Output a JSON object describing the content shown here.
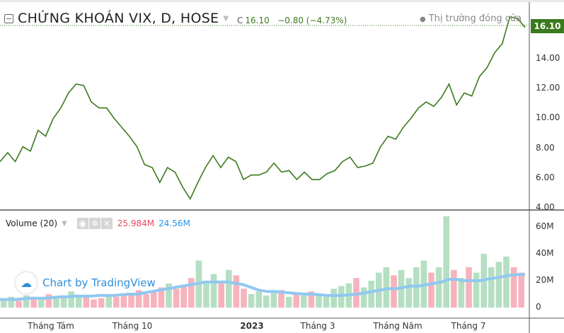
{
  "header": {
    "title": "CHỨNG KHOÁN VIX, D, HOSE",
    "close_label": "C",
    "close": "16.10",
    "change": "−0.80 (−4.73%)",
    "market_status": "Thị trường đóng cửa",
    "last_price": "16.10"
  },
  "volume": {
    "label": "Volume (20)",
    "icons": [
      "eye-icon",
      "gear-icon",
      "close-icon"
    ],
    "value": "25.984M",
    "ma_value": "24.56M"
  },
  "branding": "Chart by TradingView",
  "colors": {
    "price_line": "#3b7a1e",
    "volume_up": "#b5dfc2",
    "volume_down": "#f6b3bd",
    "volume_ma": "#90c8f0"
  },
  "chart_data": [
    {
      "type": "line",
      "name": "",
      "ylim": [
        4,
        17
      ],
      "yticks": [
        "16.10",
        "14.00",
        "12.00",
        "10.00",
        "8.00",
        "6.00",
        "4.00"
      ],
      "xticks": [
        "Tháng Tám",
        "Tháng 10",
        "2023",
        "Tháng 3",
        "Tháng Năm",
        "Tháng 7"
      ],
      "values": [
        7.1,
        7.7,
        7.1,
        8.1,
        7.8,
        9.2,
        8.8,
        10.0,
        10.7,
        11.7,
        12.3,
        12.2,
        11.1,
        10.7,
        10.7,
        10.0,
        9.4,
        8.8,
        8.1,
        6.9,
        6.7,
        5.7,
        6.7,
        6.4,
        5.4,
        4.6,
        5.7,
        6.7,
        7.5,
        6.7,
        7.4,
        7.1,
        5.9,
        6.2,
        6.2,
        6.4,
        7.0,
        6.4,
        6.5,
        5.9,
        6.4,
        5.9,
        5.9,
        6.3,
        6.5,
        7.1,
        7.4,
        6.7,
        6.8,
        7.0,
        8.1,
        8.8,
        8.6,
        9.4,
        10.0,
        10.7,
        11.1,
        10.8,
        11.4,
        12.3,
        10.9,
        11.7,
        11.5,
        12.8,
        13.4,
        14.4,
        15.0,
        16.8,
        16.7,
        16.1
      ]
    },
    {
      "type": "bar",
      "name": "Volume",
      "ylim": [
        0,
        70
      ],
      "yticks": [
        "60M",
        "40M",
        "20M",
        "0"
      ],
      "values": [
        6,
        8,
        5,
        9,
        7,
        6,
        10,
        8,
        7,
        12,
        9,
        8,
        6,
        7,
        10,
        8,
        9,
        11,
        13,
        10,
        12,
        15,
        18,
        14,
        16,
        22,
        35,
        20,
        25,
        18,
        28,
        24,
        14,
        10,
        12,
        9,
        11,
        13,
        8,
        10,
        9,
        12,
        10,
        8,
        14,
        16,
        18,
        22,
        15,
        20,
        26,
        30,
        24,
        28,
        22,
        30,
        35,
        26,
        30,
        68,
        28,
        22,
        30,
        26,
        40,
        30,
        34,
        38,
        30,
        26
      ],
      "ma": [
        6,
        6,
        6,
        6.5,
        7,
        7,
        7,
        7.5,
        8,
        8,
        8.5,
        8.5,
        8.5,
        9,
        9,
        9,
        9.5,
        10,
        10,
        11,
        12,
        13,
        14,
        15,
        16,
        17,
        18,
        19,
        19,
        19,
        19,
        18,
        17,
        15,
        13,
        12,
        12,
        11.5,
        11,
        10.5,
        10,
        10,
        9.5,
        9,
        9,
        9,
        9.5,
        10,
        11,
        12,
        13,
        14,
        14,
        15,
        16,
        16,
        17,
        18,
        19,
        21,
        21,
        20,
        20,
        20,
        21,
        22,
        23,
        24,
        24.5,
        24.56
      ]
    }
  ]
}
